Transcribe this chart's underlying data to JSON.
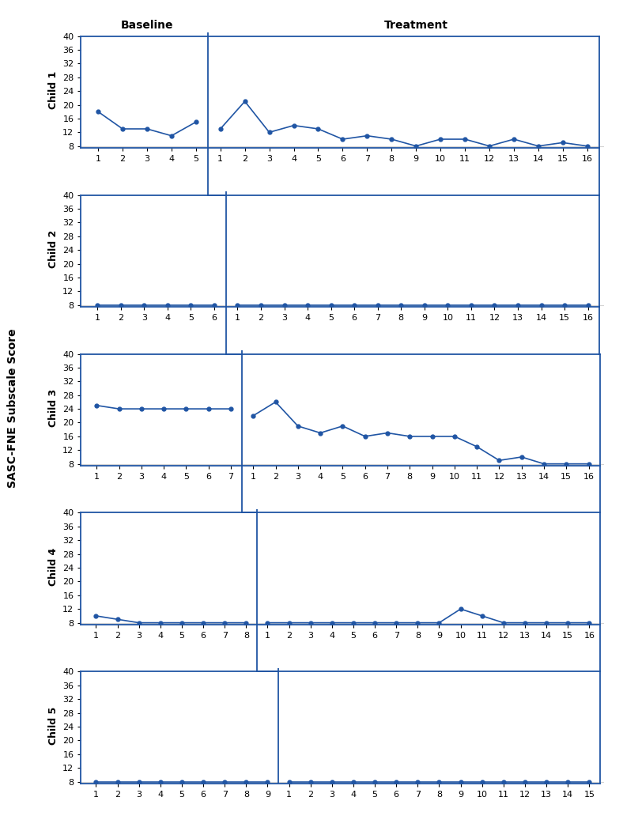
{
  "children": [
    "Child 1",
    "Child 2",
    "Child 3",
    "Child 4",
    "Child 5"
  ],
  "color": "#2055A4",
  "yticks": [
    8,
    12,
    16,
    20,
    24,
    28,
    32,
    36,
    40
  ],
  "ylim": [
    7.5,
    41
  ],
  "ylabel": "SASC-FNE Subscale Score",
  "baseline_label": "Baseline",
  "treatment_label": "Treatment",
  "child1": {
    "baseline_y": [
      18,
      13,
      13,
      11,
      15
    ],
    "treatment_y": [
      13,
      21,
      12,
      14,
      13,
      10,
      11,
      10,
      8,
      10,
      10,
      8,
      10,
      8,
      9,
      8
    ],
    "n_baseline": 5,
    "n_treatment": 16
  },
  "child2": {
    "baseline_y": [
      8,
      8,
      8,
      8,
      8,
      8
    ],
    "treatment_y": [
      8,
      8,
      8,
      8,
      8,
      8,
      8,
      8,
      8,
      8,
      8,
      8,
      8,
      8,
      8,
      8
    ],
    "n_baseline": 6,
    "n_treatment": 16
  },
  "child3": {
    "baseline_y": [
      25,
      24,
      24,
      24,
      24,
      24,
      24
    ],
    "treatment_y": [
      22,
      26,
      19,
      17,
      19,
      16,
      17,
      16,
      16,
      16,
      13,
      9,
      10,
      8,
      8,
      8
    ],
    "n_baseline": 7,
    "n_treatment": 16
  },
  "child4": {
    "baseline_y": [
      10,
      9,
      8,
      8,
      8,
      8,
      8,
      8
    ],
    "treatment_y": [
      8,
      8,
      8,
      8,
      8,
      8,
      8,
      8,
      8,
      12,
      10,
      8,
      8,
      8,
      8,
      8
    ],
    "n_baseline": 8,
    "n_treatment": 16
  },
  "child5": {
    "baseline_y": [
      8,
      8,
      8,
      8,
      8,
      8,
      8,
      8,
      8
    ],
    "treatment_y": [
      8,
      8,
      8,
      8,
      8,
      8,
      8,
      8,
      8,
      8,
      8,
      8,
      8,
      8,
      8
    ],
    "n_baseline": 9,
    "n_treatment": 15
  }
}
